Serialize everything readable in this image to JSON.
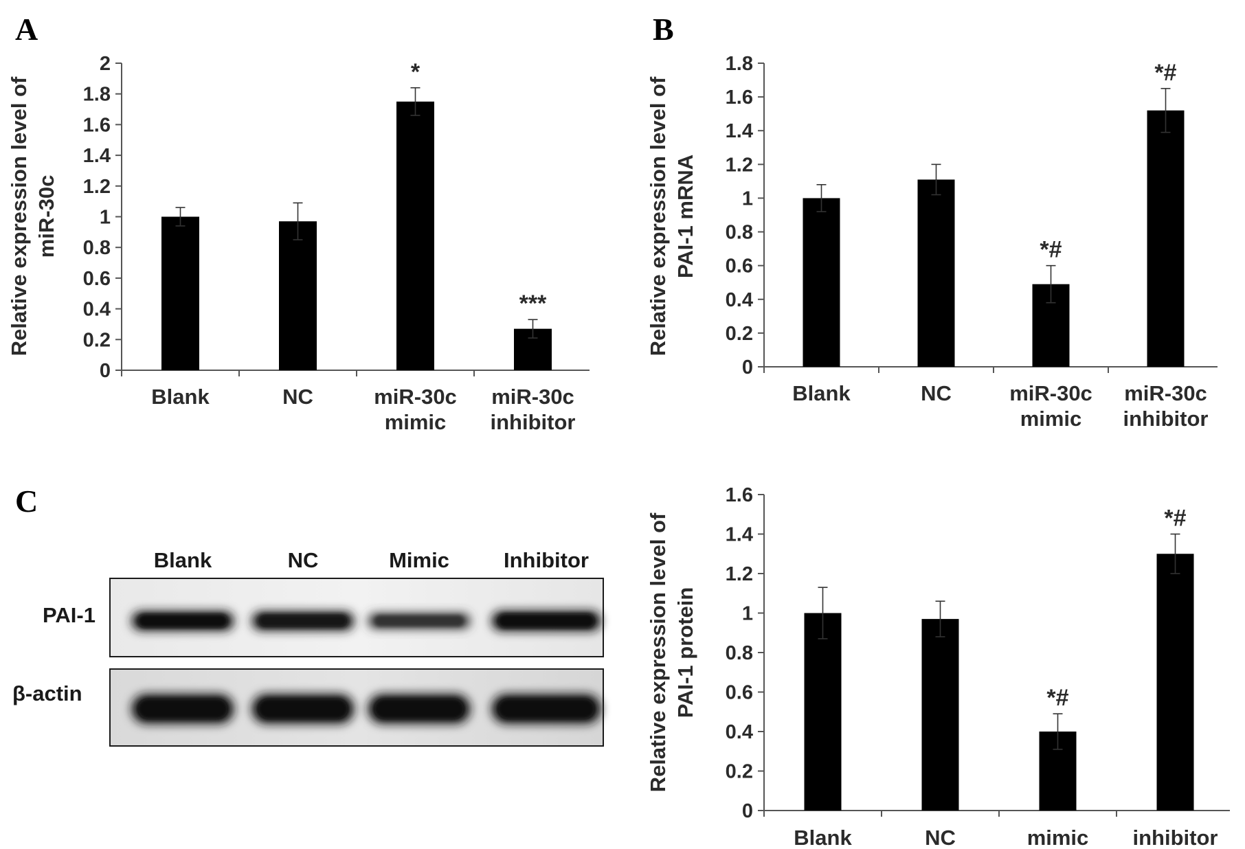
{
  "figure": {
    "panel_labels": [
      "A",
      "B",
      "C"
    ]
  },
  "colors": {
    "bar": "#000000",
    "axis": "#555555",
    "text": "#2b2b2b"
  },
  "chart_data": [
    {
      "type": "bar",
      "panel": "A",
      "categories": [
        "Blank",
        "NC",
        "miR-30c mimic",
        "miR-30c inhibitor"
      ],
      "category_lines": [
        [
          "Blank"
        ],
        [
          "NC"
        ],
        [
          "miR-30c",
          "mimic"
        ],
        [
          "miR-30c",
          "inhibitor"
        ]
      ],
      "values": [
        1.0,
        0.97,
        1.75,
        0.27
      ],
      "errors": [
        0.06,
        0.12,
        0.09,
        0.06
      ],
      "annotations": [
        "",
        "",
        "*",
        "***"
      ],
      "ylabel_lines": [
        "Relative expression level of",
        "miR-30c"
      ],
      "ylim": [
        0,
        2
      ],
      "yticks": [
        0,
        0.2,
        0.4,
        0.6,
        0.8,
        1,
        1.2,
        1.4,
        1.6,
        1.8,
        2
      ],
      "grid": false
    },
    {
      "type": "bar",
      "panel": "B",
      "categories": [
        "Blank",
        "NC",
        "miR-30c mimic",
        "miR-30c inhibitor"
      ],
      "category_lines": [
        [
          "Blank"
        ],
        [
          "NC"
        ],
        [
          "miR-30c",
          "mimic"
        ],
        [
          "miR-30c",
          "inhibitor"
        ]
      ],
      "values": [
        1.0,
        1.11,
        0.49,
        1.52
      ],
      "errors": [
        0.08,
        0.09,
        0.11,
        0.13
      ],
      "annotations": [
        "",
        "",
        "*#",
        "*#"
      ],
      "ylabel_lines": [
        "Relative expression level of",
        "PAI-1 mRNA"
      ],
      "ylim": [
        0,
        1.8
      ],
      "yticks": [
        0,
        0.2,
        0.4,
        0.6,
        0.8,
        1,
        1.2,
        1.4,
        1.6,
        1.8
      ],
      "grid": false
    },
    {
      "type": "bar",
      "panel": "C",
      "categories": [
        "Blank",
        "NC",
        "mimic",
        "inhibitor"
      ],
      "category_lines": [
        [
          "Blank"
        ],
        [
          "NC"
        ],
        [
          "mimic"
        ],
        [
          "inhibitor"
        ]
      ],
      "values": [
        1.0,
        0.97,
        0.4,
        1.3
      ],
      "errors": [
        0.13,
        0.09,
        0.09,
        0.1
      ],
      "annotations": [
        "",
        "",
        "*#",
        "*#"
      ],
      "ylabel_lines": [
        "Relative expression level of",
        "PAI-1 protein"
      ],
      "ylim": [
        0,
        1.6
      ],
      "yticks": [
        0,
        0.2,
        0.4,
        0.6,
        0.8,
        1,
        1.2,
        1.4,
        1.6
      ],
      "grid": false
    }
  ],
  "western_blot": {
    "lanes": [
      "Blank",
      "NC",
      "Mimic",
      "Inhibitor"
    ],
    "rows": [
      {
        "label": "PAI-1",
        "intensities": [
          0.95,
          0.9,
          0.55,
          1.0
        ]
      },
      {
        "label": "β-actin",
        "intensities": [
          1.0,
          1.0,
          1.0,
          1.0
        ]
      }
    ]
  }
}
